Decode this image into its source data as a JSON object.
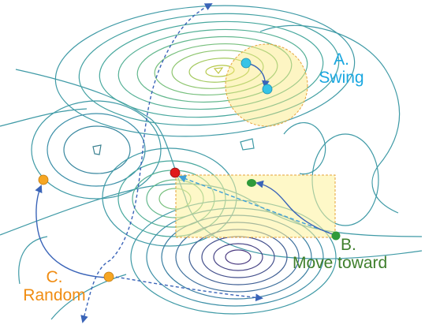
{
  "labels": {
    "swing_letter": "A.",
    "swing_word": "Swing",
    "move_letter": "B.",
    "move_word": "Move toward",
    "random_letter": "C.",
    "random_word": "Random"
  },
  "colors": {
    "contour_outer": "#3f9aa6",
    "contour_inner_peak": "#b5c94a",
    "contour_valley": "#4a3a80",
    "swing_region": "#fbe97a",
    "swing_points": "#36c4e6",
    "move_region": "#fdf39a",
    "move_points": "#2f9a3a",
    "random_points": "#f6a623",
    "target_point": "#e01919",
    "arrows": "#3a64b8",
    "label_a": "#1aa7e0",
    "label_b": "#3f7f2c",
    "label_c": "#f08c12"
  }
}
